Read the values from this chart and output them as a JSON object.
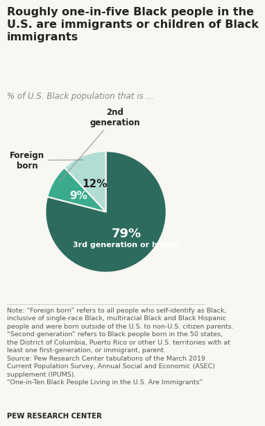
{
  "title": "Roughly one-in-five Black people in the\nU.S. are immigrants or children of Black\nimmigrants",
  "subtitle": "% of U.S. Black population that is ...",
  "slices": [
    79,
    9,
    12
  ],
  "slice_order": [
    "3rd generation or higher",
    "2nd generation",
    "Foreign born"
  ],
  "colors": [
    "#2d6b5e",
    "#3aab8e",
    "#b2ddd4"
  ],
  "pct_labels": [
    "79%",
    "9%",
    "12%"
  ],
  "note_line1": "Note: “Foreign born” refers to all people who self-identify as Black,",
  "note_line2": "inclusive of single-race Black, multiracial Black and Black Hispanic",
  "note_line3": "people and were born outside of the U.S. to non-U.S. citizen parents.",
  "note_line4": "“Second generation” refers to Black people born in the 50 states,",
  "note_line5": "the District of Columbia, Puerto Rico or other U.S. territories with at",
  "note_line6": "least one first-generation, or immigrant, parent.",
  "note_line7": "Source: Pew Research Center tabulations of the March 2019",
  "note_line8": "Current Population Survey, Annual Social and Economic (ASEC)",
  "note_line9": "supplement (IPUMS).",
  "note_line10": "“One-in-Ten Black People Living in the U.S. Are Immigrants”",
  "source_bold": "PEW RESEARCH CENTER",
  "bg_color": "#f9f7f2",
  "white_color": "#ffffff",
  "dark_text": "#222222",
  "gray_text": "#888888",
  "note_text": "#555555",
  "title_fontsize": 11.5,
  "subtitle_fontsize": 8.5,
  "note_fontsize": 6.8,
  "label_fontsize": 8.5,
  "pct_fontsize_big": 13,
  "pct_fontsize_small": 11,
  "inner_label_fontsize": 8
}
